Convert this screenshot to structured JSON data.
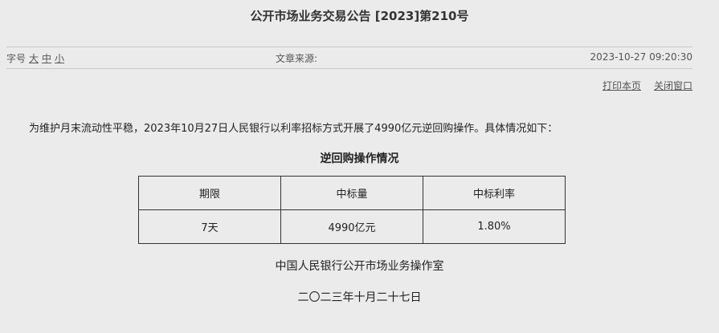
{
  "title": "公开市场业务交易公告 [2023]第210号",
  "meta": {
    "font_size_label": "字号",
    "sizes": [
      "大",
      "中",
      "小"
    ],
    "source_label": "文章来源:",
    "datetime": "2023-10-27 09:20:30"
  },
  "links": {
    "print": "打印本页",
    "close": "关闭窗口"
  },
  "paragraph": "为维护月末流动性平稳，2023年10月27日人民银行以利率招标方式开展了4990亿元逆回购操作。具体情况如下：",
  "table": {
    "caption": "逆回购操作情况",
    "headers": [
      "期限",
      "中标量",
      "中标利率"
    ],
    "rows": [
      [
        "7天",
        "4990亿元",
        "1.80%"
      ]
    ]
  },
  "signature": "中国人民银行公开市场业务操作室",
  "date": "二〇二三年十月二十七日"
}
